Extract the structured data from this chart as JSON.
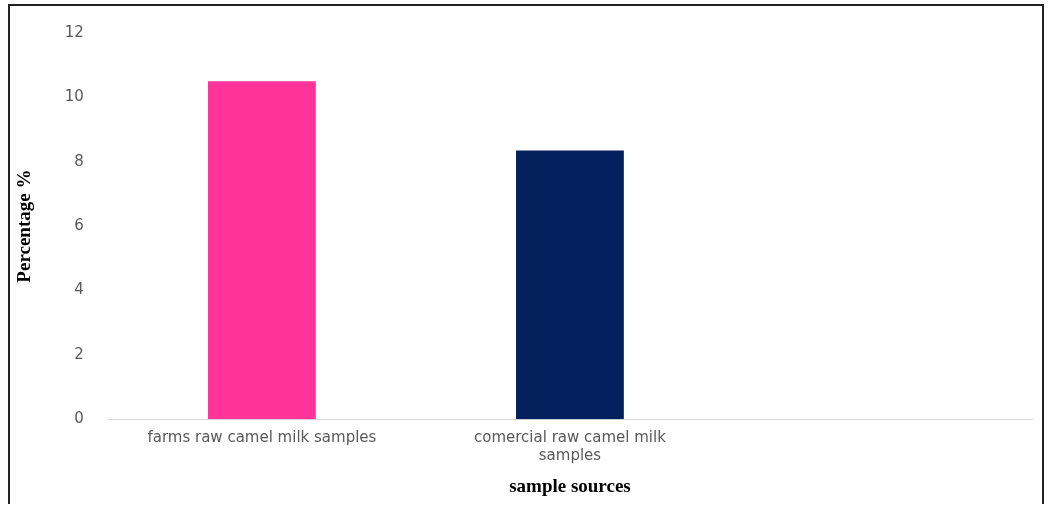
{
  "chart_data": {
    "type": "bar",
    "xlabel": "sample sources",
    "ylabel": "Percentage %",
    "categories": [
      "farms raw camel milk samples",
      "comercial raw camel milk samples",
      null
    ],
    "values": [
      10.5,
      8.35,
      null
    ],
    "colors": [
      "#ff3399",
      "#03205c",
      "#03205c"
    ],
    "ylim": [
      0,
      12
    ],
    "yticks": [
      0,
      2,
      4,
      6,
      8,
      10,
      12
    ],
    "grid": false,
    "legend": false
  }
}
